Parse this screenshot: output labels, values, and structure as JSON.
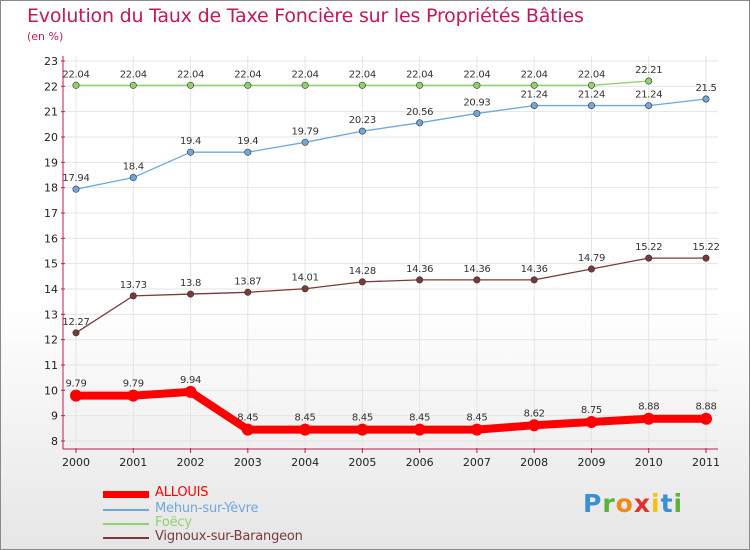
{
  "chart_data": {
    "type": "line",
    "title": "Evolution du Taux de Taxe Foncière sur les Propriétés Bâties",
    "unit_label": "(en %)",
    "x": [
      "2000",
      "2001",
      "2002",
      "2003",
      "2004",
      "2005",
      "2006",
      "2007",
      "2008",
      "2009",
      "2010",
      "2011"
    ],
    "ylim": [
      8,
      23
    ],
    "yticks": [
      "8",
      "9",
      "10",
      "11",
      "12",
      "13",
      "14",
      "15",
      "16",
      "17",
      "18",
      "19",
      "20",
      "21",
      "22",
      "23"
    ],
    "series": [
      {
        "name": "ALLOUIS",
        "color": "#ff0000",
        "values": [
          9.79,
          9.79,
          9.94,
          8.45,
          8.45,
          8.45,
          8.45,
          8.45,
          8.62,
          8.75,
          8.88,
          8.88
        ],
        "labels": [
          "9.79",
          "9.79",
          "9.94",
          "8.45",
          "8.45",
          "8.45",
          "8.45",
          "8.45",
          "8.62",
          "8.75",
          "8.88",
          "8.88"
        ]
      },
      {
        "name": "Mehun-sur-Yèvre",
        "color": "#6fa8dc",
        "values": [
          17.94,
          18.4,
          19.4,
          19.4,
          19.79,
          20.23,
          20.56,
          20.93,
          21.24,
          21.24,
          21.24,
          21.5
        ],
        "labels": [
          "17.94",
          "18.4",
          "19.4",
          "19.4",
          "19.79",
          "20.23",
          "20.56",
          "20.93",
          "21.24",
          "21.24",
          "21.24",
          "21.5"
        ]
      },
      {
        "name": "Foëcy",
        "color": "#8fd16a",
        "values": [
          22.04,
          22.04,
          22.04,
          22.04,
          22.04,
          22.04,
          22.04,
          22.04,
          22.04,
          22.04,
          22.21,
          null
        ],
        "labels": [
          "22.04",
          "22.04",
          "22.04",
          "22.04",
          "22.04",
          "22.04",
          "22.04",
          "22.04",
          "22.04",
          "22.04",
          "22.21",
          ""
        ]
      },
      {
        "name": "Vignoux-sur-Barangeon",
        "color": "#7a3a3a",
        "values": [
          12.27,
          13.73,
          13.8,
          13.87,
          14.01,
          14.28,
          14.36,
          14.36,
          14.36,
          14.79,
          15.22,
          15.22
        ],
        "labels": [
          "12.27",
          "13.73",
          "13.8",
          "13.87",
          "14.01",
          "14.28",
          "14.36",
          "14.36",
          "14.36",
          "14.79",
          "15.22",
          "15.22"
        ]
      }
    ]
  },
  "brand": "Proxiti"
}
